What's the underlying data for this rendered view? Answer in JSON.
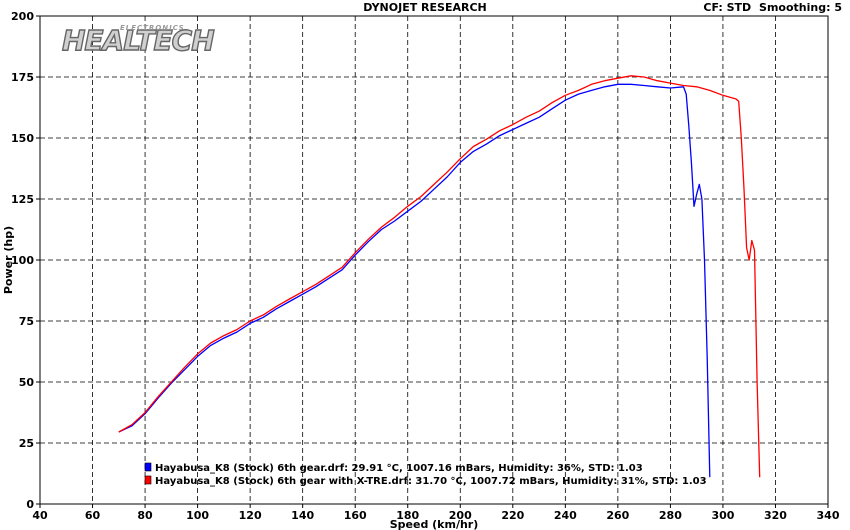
{
  "header": {
    "title": "DYNOJET RESEARCH",
    "cf": "CF: STD",
    "smoothing": "Smoothing: 5"
  },
  "logo": {
    "main": "HEALTECH",
    "sub": "ELECTRONICS"
  },
  "chart_data": {
    "type": "line",
    "title": "DYNOJET RESEARCH",
    "xlabel": "Speed (km/hr)",
    "ylabel": "Power (hp)",
    "xlim": [
      40,
      340
    ],
    "ylim": [
      0,
      200
    ],
    "xticks": [
      40,
      60,
      80,
      100,
      120,
      140,
      160,
      180,
      200,
      220,
      240,
      260,
      280,
      300,
      320,
      340
    ],
    "yticks": [
      0,
      25,
      50,
      75,
      100,
      125,
      150,
      175,
      200
    ],
    "grid": true,
    "legend": "bottom-left",
    "series": [
      {
        "name": "Hayabusa_K8 (Stock) 6th gear.drf: 29.91 °C, 1007.16 mBars, Humidity: 36%, STD: 1.03",
        "color": "#0000ff",
        "x": [
          70,
          75,
          80,
          85,
          90,
          95,
          100,
          105,
          110,
          115,
          120,
          125,
          130,
          135,
          140,
          145,
          150,
          155,
          160,
          165,
          170,
          175,
          180,
          185,
          190,
          195,
          200,
          205,
          210,
          215,
          220,
          225,
          230,
          235,
          240,
          245,
          250,
          255,
          260,
          265,
          270,
          275,
          280,
          285,
          286,
          287,
          288,
          289,
          290,
          291,
          292,
          293,
          294,
          295
        ],
        "y": [
          29.5,
          32,
          37,
          43.5,
          49.5,
          55,
          60.5,
          65,
          68,
          70.5,
          74,
          76.5,
          80,
          83,
          86,
          89,
          92.5,
          96,
          102,
          107.5,
          112.5,
          116,
          120,
          124,
          129,
          134,
          140,
          144.5,
          147.5,
          151,
          153.5,
          156,
          158.5,
          162,
          165.5,
          168,
          169.5,
          171,
          172,
          172,
          171.5,
          171,
          170.5,
          171,
          168,
          155,
          140,
          122,
          127,
          131,
          125,
          100,
          60,
          11
        ]
      },
      {
        "name": "Hayabusa_K8 (Stock) 6th gear with X-TRE.drf: 31.70 °C, 1007.72 mBars, Humidity: 31%, STD: 1.03",
        "color": "#ff0000",
        "x": [
          70,
          75,
          80,
          85,
          90,
          95,
          100,
          105,
          110,
          115,
          120,
          125,
          130,
          135,
          140,
          145,
          150,
          155,
          160,
          165,
          170,
          175,
          180,
          185,
          190,
          195,
          200,
          205,
          210,
          215,
          220,
          225,
          230,
          235,
          240,
          245,
          250,
          255,
          260,
          265,
          270,
          275,
          280,
          285,
          290,
          295,
          300,
          305,
          306,
          307,
          308,
          309,
          310,
          311,
          312,
          313,
          314
        ],
        "y": [
          29.5,
          32.5,
          37.5,
          44,
          50,
          56,
          61.5,
          66,
          69,
          71.5,
          75,
          77.5,
          81,
          84,
          87,
          90,
          93.5,
          97,
          103,
          108.5,
          113.5,
          117.5,
          122,
          126,
          131,
          136,
          141.5,
          146.5,
          149.5,
          153,
          155.5,
          158.5,
          161,
          164.5,
          167.5,
          169.5,
          172,
          173.5,
          174.5,
          175.5,
          175,
          173.5,
          172.5,
          171.5,
          171,
          169.5,
          167.5,
          166,
          165,
          150,
          130,
          105,
          100,
          108,
          104,
          50,
          11
        ]
      }
    ]
  }
}
